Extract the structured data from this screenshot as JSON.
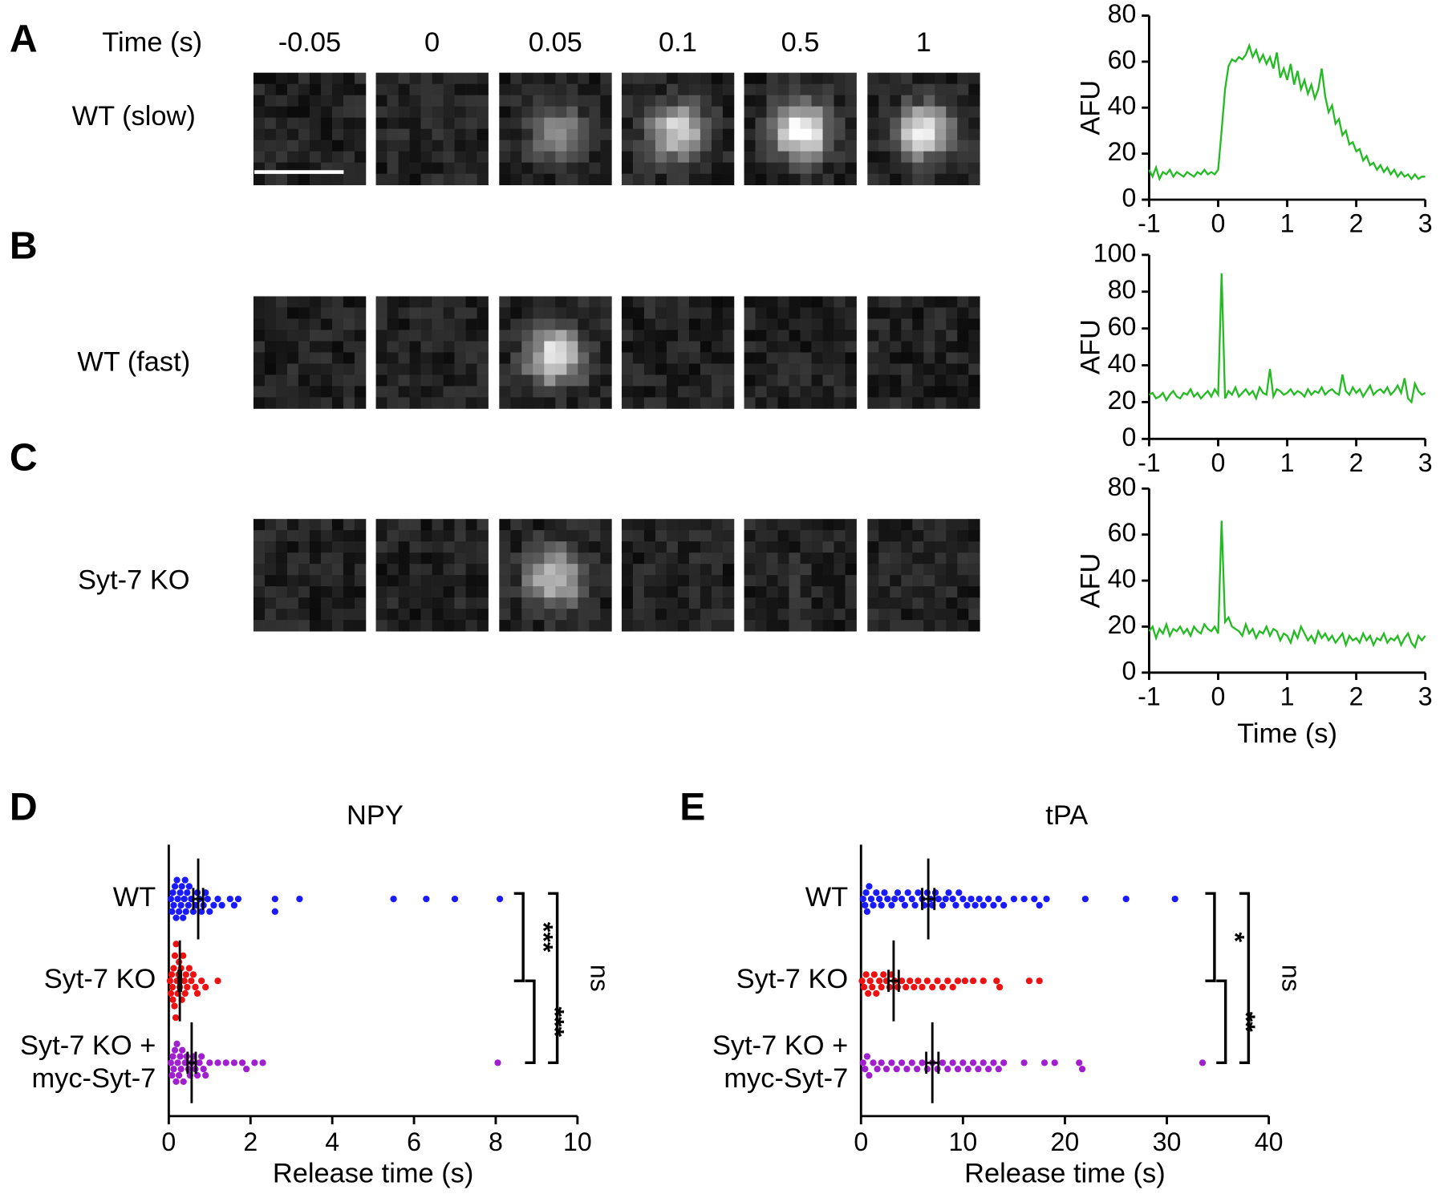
{
  "image_panels": {
    "time_label": "Time (s)",
    "times": [
      "-0.05",
      "0",
      "0.05",
      "0.1",
      "0.5",
      "1"
    ],
    "rows": [
      {
        "panel": "A",
        "label": "WT (slow)"
      },
      {
        "panel": "B",
        "label": "WT (fast)"
      },
      {
        "panel": "C",
        "label": "Syt-7 KO"
      }
    ]
  },
  "chart_data": [
    {
      "type": "line",
      "ylabel": "AFU",
      "xlim": [
        -1,
        3
      ],
      "xticks": [
        -1,
        0,
        1,
        2,
        3
      ],
      "ylim": [
        0,
        80
      ],
      "yticks": [
        0,
        20,
        40,
        60,
        80
      ],
      "x": [
        -1,
        -0.95,
        -0.9,
        -0.85,
        -0.8,
        -0.75,
        -0.7,
        -0.65,
        -0.6,
        -0.55,
        -0.5,
        -0.45,
        -0.4,
        -0.35,
        -0.3,
        -0.25,
        -0.2,
        -0.15,
        -0.1,
        -0.05,
        0,
        0.05,
        0.1,
        0.15,
        0.2,
        0.25,
        0.3,
        0.35,
        0.4,
        0.45,
        0.5,
        0.55,
        0.6,
        0.65,
        0.7,
        0.75,
        0.8,
        0.85,
        0.9,
        0.95,
        1,
        1.05,
        1.1,
        1.15,
        1.2,
        1.25,
        1.3,
        1.35,
        1.4,
        1.45,
        1.5,
        1.55,
        1.6,
        1.65,
        1.7,
        1.75,
        1.8,
        1.85,
        1.9,
        1.95,
        2,
        2.05,
        2.1,
        2.15,
        2.2,
        2.25,
        2.3,
        2.35,
        2.4,
        2.45,
        2.5,
        2.55,
        2.6,
        2.65,
        2.7,
        2.75,
        2.8,
        2.85,
        2.9,
        2.95,
        3
      ],
      "series": [
        {
          "color": "#22bb22",
          "values": [
            13,
            10,
            14,
            9,
            12,
            11,
            13,
            10,
            12,
            11,
            10,
            12,
            11,
            10,
            12,
            11,
            13,
            11,
            12,
            11,
            13,
            30,
            48,
            58,
            61,
            60,
            62,
            61,
            63,
            67,
            62,
            65,
            60,
            63,
            59,
            62,
            57,
            64,
            53,
            57,
            52,
            59,
            50,
            56,
            48,
            52,
            46,
            50,
            44,
            48,
            57,
            45,
            38,
            41,
            33,
            35,
            28,
            30,
            24,
            25,
            21,
            22,
            17,
            19,
            15,
            16,
            13,
            15,
            12,
            14,
            11,
            13,
            10,
            12,
            10,
            11,
            9,
            11,
            9,
            10,
            10
          ]
        }
      ]
    },
    {
      "type": "line",
      "ylabel": "AFU",
      "xlim": [
        -1,
        3
      ],
      "xticks": [
        -1,
        0,
        1,
        2,
        3
      ],
      "ylim": [
        0,
        100
      ],
      "yticks": [
        0,
        20,
        40,
        60,
        80,
        100
      ],
      "x": [
        -1,
        -0.95,
        -0.9,
        -0.85,
        -0.8,
        -0.75,
        -0.7,
        -0.65,
        -0.6,
        -0.55,
        -0.5,
        -0.45,
        -0.4,
        -0.35,
        -0.3,
        -0.25,
        -0.2,
        -0.15,
        -0.1,
        -0.05,
        0,
        0.05,
        0.1,
        0.15,
        0.2,
        0.25,
        0.3,
        0.35,
        0.4,
        0.45,
        0.5,
        0.55,
        0.6,
        0.65,
        0.7,
        0.75,
        0.8,
        0.85,
        0.9,
        0.95,
        1,
        1.05,
        1.1,
        1.15,
        1.2,
        1.25,
        1.3,
        1.35,
        1.4,
        1.45,
        1.5,
        1.55,
        1.6,
        1.65,
        1.7,
        1.75,
        1.8,
        1.85,
        1.9,
        1.95,
        2,
        2.05,
        2.1,
        2.15,
        2.2,
        2.25,
        2.3,
        2.35,
        2.4,
        2.45,
        2.5,
        2.55,
        2.6,
        2.65,
        2.7,
        2.75,
        2.8,
        2.85,
        2.9,
        2.95,
        3
      ],
      "series": [
        {
          "color": "#22bb22",
          "values": [
            24,
            25,
            22,
            23,
            25,
            21,
            24,
            26,
            23,
            22,
            25,
            24,
            27,
            23,
            25,
            22,
            24,
            26,
            23,
            27,
            24,
            90,
            22,
            26,
            24,
            28,
            23,
            25,
            27,
            24,
            26,
            22,
            28,
            25,
            24,
            38,
            23,
            27,
            26,
            24,
            25,
            27,
            24,
            26,
            25,
            23,
            27,
            24,
            26,
            25,
            28,
            24,
            26,
            27,
            25,
            24,
            35,
            26,
            24,
            28,
            25,
            27,
            23,
            26,
            29,
            24,
            26,
            27,
            25,
            28,
            24,
            26,
            29,
            25,
            33,
            22,
            20,
            30,
            26,
            24,
            25
          ]
        }
      ]
    },
    {
      "type": "line",
      "ylabel": "AFU",
      "xlabel": "Time (s)",
      "xlim": [
        -1,
        3
      ],
      "xticks": [
        -1,
        0,
        1,
        2,
        3
      ],
      "ylim": [
        0,
        80
      ],
      "yticks": [
        0,
        20,
        40,
        60,
        80
      ],
      "x": [
        -1,
        -0.95,
        -0.9,
        -0.85,
        -0.8,
        -0.75,
        -0.7,
        -0.65,
        -0.6,
        -0.55,
        -0.5,
        -0.45,
        -0.4,
        -0.35,
        -0.3,
        -0.25,
        -0.2,
        -0.15,
        -0.1,
        -0.05,
        0,
        0.05,
        0.1,
        0.15,
        0.2,
        0.25,
        0.3,
        0.35,
        0.4,
        0.45,
        0.5,
        0.55,
        0.6,
        0.65,
        0.7,
        0.75,
        0.8,
        0.85,
        0.9,
        0.95,
        1,
        1.05,
        1.1,
        1.15,
        1.2,
        1.25,
        1.3,
        1.35,
        1.4,
        1.45,
        1.5,
        1.55,
        1.6,
        1.65,
        1.7,
        1.75,
        1.8,
        1.85,
        1.9,
        1.95,
        2,
        2.05,
        2.1,
        2.15,
        2.2,
        2.25,
        2.3,
        2.35,
        2.4,
        2.45,
        2.5,
        2.55,
        2.6,
        2.65,
        2.7,
        2.75,
        2.8,
        2.85,
        2.9,
        2.95,
        3
      ],
      "series": [
        {
          "color": "#22bb22",
          "values": [
            18,
            20,
            15,
            19,
            17,
            21,
            16,
            19,
            18,
            20,
            17,
            19,
            16,
            20,
            18,
            17,
            21,
            19,
            18,
            20,
            17,
            66,
            22,
            24,
            20,
            19,
            18,
            16,
            21,
            17,
            19,
            15,
            18,
            17,
            20,
            16,
            19,
            18,
            14,
            17,
            16,
            13,
            18,
            15,
            20,
            17,
            14,
            16,
            13,
            18,
            15,
            17,
            14,
            16,
            13,
            15,
            17,
            12,
            16,
            14,
            15,
            13,
            17,
            14,
            16,
            12,
            15,
            14,
            17,
            13,
            15,
            14,
            16,
            12,
            15,
            17,
            13,
            11,
            16,
            14,
            16
          ]
        }
      ]
    },
    {
      "type": "swarm",
      "panel": "D",
      "title": "NPY",
      "xlabel": "Release time (s)",
      "xlim": [
        0,
        10
      ],
      "xticks": [
        0,
        2,
        4,
        6,
        8,
        10
      ],
      "series": [
        {
          "label": [
            "WT"
          ],
          "color": "#1a1aff",
          "mean": 0.72,
          "sem": 0.12,
          "values": [
            0.05,
            0.08,
            0.1,
            0.12,
            0.15,
            0.18,
            0.2,
            0.22,
            0.25,
            0.28,
            0.3,
            0.32,
            0.35,
            0.38,
            0.4,
            0.42,
            0.45,
            0.48,
            0.5,
            0.55,
            0.6,
            0.65,
            0.7,
            0.75,
            0.8,
            0.85,
            0.9,
            0.95,
            1.0,
            1.1,
            1.2,
            1.3,
            1.5,
            1.6,
            1.7,
            2.6,
            2.6,
            3.2,
            5.5,
            6.3,
            7.0,
            8.1
          ]
        },
        {
          "label": [
            "Syt-7 KO"
          ],
          "color": "#ee1111",
          "mean": 0.27,
          "sem": 0.03,
          "values": [
            0.03,
            0.05,
            0.07,
            0.09,
            0.1,
            0.12,
            0.14,
            0.15,
            0.17,
            0.18,
            0.2,
            0.22,
            0.24,
            0.25,
            0.27,
            0.3,
            0.32,
            0.35,
            0.38,
            0.4,
            0.42,
            0.45,
            0.5,
            0.55,
            0.6,
            0.65,
            0.7,
            0.8,
            0.9,
            1.2
          ]
        },
        {
          "label": [
            "Syt-7 KO +",
            "myc-Syt-7"
          ],
          "color": "#a020d0",
          "mean": 0.56,
          "sem": 0.1,
          "values": [
            0.05,
            0.08,
            0.1,
            0.12,
            0.15,
            0.18,
            0.2,
            0.22,
            0.25,
            0.28,
            0.3,
            0.33,
            0.36,
            0.4,
            0.44,
            0.48,
            0.52,
            0.56,
            0.6,
            0.65,
            0.7,
            0.75,
            0.8,
            0.85,
            0.9,
            1.0,
            1.2,
            1.4,
            1.6,
            1.8,
            1.9,
            2.1,
            2.3,
            8.05
          ]
        }
      ],
      "annotations": [
        {
          "text": "***",
          "groups": [
            0,
            1
          ]
        },
        {
          "text": "***",
          "groups": [
            1,
            2
          ]
        },
        {
          "text": "ns",
          "groups": [
            0,
            2
          ]
        }
      ]
    },
    {
      "type": "swarm",
      "panel": "E",
      "title": "tPA",
      "xlabel": "Release time (s)",
      "xlim": [
        0,
        40
      ],
      "xticks": [
        0,
        10,
        20,
        30,
        40
      ],
      "series": [
        {
          "label": [
            "WT"
          ],
          "color": "#1a1aff",
          "mean": 6.6,
          "sem": 0.6,
          "values": [
            0.2,
            0.4,
            0.5,
            0.6,
            0.8,
            1,
            1.2,
            1.5,
            1.8,
            2,
            2.3,
            2.6,
            3,
            3.3,
            3.6,
            4,
            4.3,
            4.6,
            5,
            5.3,
            5.6,
            6,
            6.2,
            6.5,
            6.8,
            7,
            7.3,
            7.6,
            8,
            8.3,
            8.6,
            9,
            9.3,
            9.6,
            10,
            10.4,
            10.8,
            11.2,
            11.6,
            12,
            12.5,
            13,
            13.5,
            14,
            15,
            16,
            17,
            17.5,
            18.2,
            22,
            26,
            30.8
          ]
        },
        {
          "label": [
            "Syt-7 KO"
          ],
          "color": "#ee1111",
          "mean": 3.2,
          "sem": 0.5,
          "values": [
            0.1,
            0.3,
            0.5,
            0.7,
            0.9,
            1.1,
            1.3,
            1.5,
            1.8,
            2,
            2.2,
            2.5,
            2.8,
            3,
            3.3,
            3.6,
            4,
            4.4,
            4.8,
            5.2,
            5.6,
            6,
            6.5,
            7,
            7.5,
            8,
            8.5,
            9,
            9.5,
            10.2,
            11,
            12,
            13.3,
            13.6,
            16.5,
            17.5
          ]
        },
        {
          "label": [
            "Syt-7 KO +",
            "myc-Syt-7"
          ],
          "color": "#a020d0",
          "mean": 7.0,
          "sem": 0.6,
          "values": [
            0.2,
            0.4,
            0.6,
            0.8,
            1.2,
            1.6,
            2,
            2.5,
            3,
            3.5,
            4,
            4.5,
            5,
            5.5,
            6,
            6.5,
            7,
            7.5,
            8,
            8.5,
            9,
            9.5,
            10,
            10.5,
            11,
            11.5,
            12,
            12.5,
            13,
            13.5,
            14,
            16,
            18,
            19,
            21.4,
            21.7,
            33.5
          ]
        }
      ],
      "annotations": [
        {
          "text": "*",
          "groups": [
            0,
            1
          ]
        },
        {
          "text": "**",
          "groups": [
            1,
            2
          ]
        },
        {
          "text": "ns",
          "groups": [
            0,
            2
          ]
        }
      ]
    }
  ]
}
